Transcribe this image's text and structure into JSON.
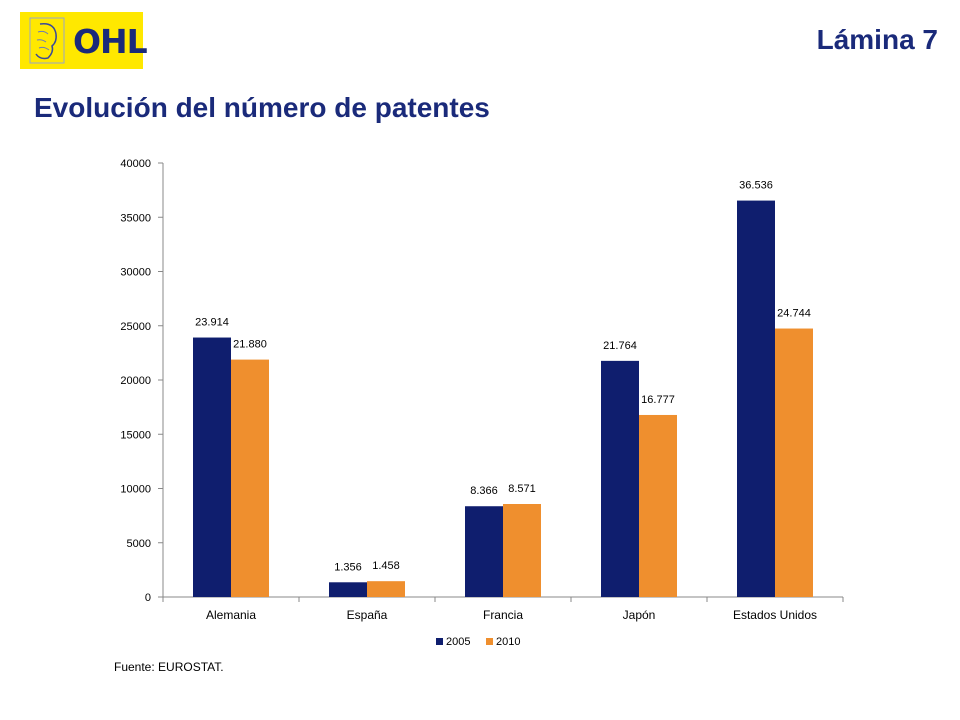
{
  "logo": {
    "text": "OHL"
  },
  "slide": {
    "number_label": "Lámina 7",
    "title": "Evolución del número de patentes"
  },
  "source_note": "Fuente: EUROSTAT.",
  "colors": {
    "series_2005": "#0f1e6e",
    "series_2010": "#ef8f2e",
    "brand_blue": "#1a2a7a",
    "logo_yellow": "#ffe800"
  },
  "chart_data": {
    "type": "bar",
    "title": "",
    "xlabel": "",
    "ylabel": "",
    "categories": [
      "Alemania",
      "España",
      "Francia",
      "Japón",
      "Estados Unidos"
    ],
    "series": [
      {
        "name": "2005",
        "values": [
          23914,
          1356,
          8366,
          21764,
          36536
        ],
        "labels": [
          "23.914",
          "1.356",
          "8.366",
          "21.764",
          "36.536"
        ]
      },
      {
        "name": "2010",
        "values": [
          21880,
          1458,
          8571,
          16777,
          24744
        ],
        "labels": [
          "21.880",
          "1.458",
          "8.571",
          "16.777",
          "24.744"
        ]
      }
    ],
    "ylim": [
      0,
      40000
    ],
    "yticks": [
      0,
      5000,
      10000,
      15000,
      20000,
      25000,
      30000,
      35000,
      40000
    ],
    "grid": false,
    "legend_position": "bottom"
  }
}
